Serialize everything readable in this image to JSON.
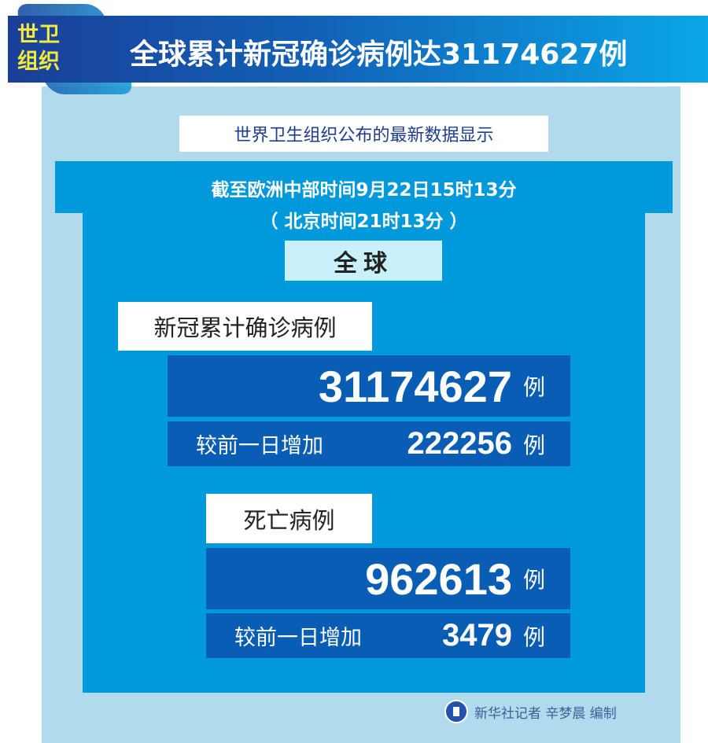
{
  "header": {
    "tag": "世卫组织",
    "tag_line1": "世卫",
    "tag_line2": "组织",
    "title": "全球累计新冠确诊病例达31174627例"
  },
  "subtitle": "世界卫生组织公布的最新数据显示",
  "time": {
    "line1": "截至欧洲中部时间9月22日15时13分",
    "line2": "（ 北京时间21时13分 ）"
  },
  "region": "全球",
  "confirmed": {
    "label": "新冠累计确诊病例",
    "total": "31174627",
    "unit": "例",
    "compare_label": "较前一日增加",
    "increase": "222256"
  },
  "deaths": {
    "label": "死亡病例",
    "total": "962613",
    "unit": "例",
    "compare_label": "较前一日增加",
    "increase": "3479"
  },
  "footer": {
    "credit": "新华社记者 辛梦晨 编制"
  },
  "colors": {
    "panel": "#0099dc",
    "dark_box": "#0a5db4",
    "background": "#b1dbec",
    "tag": "#f3ea3b"
  }
}
